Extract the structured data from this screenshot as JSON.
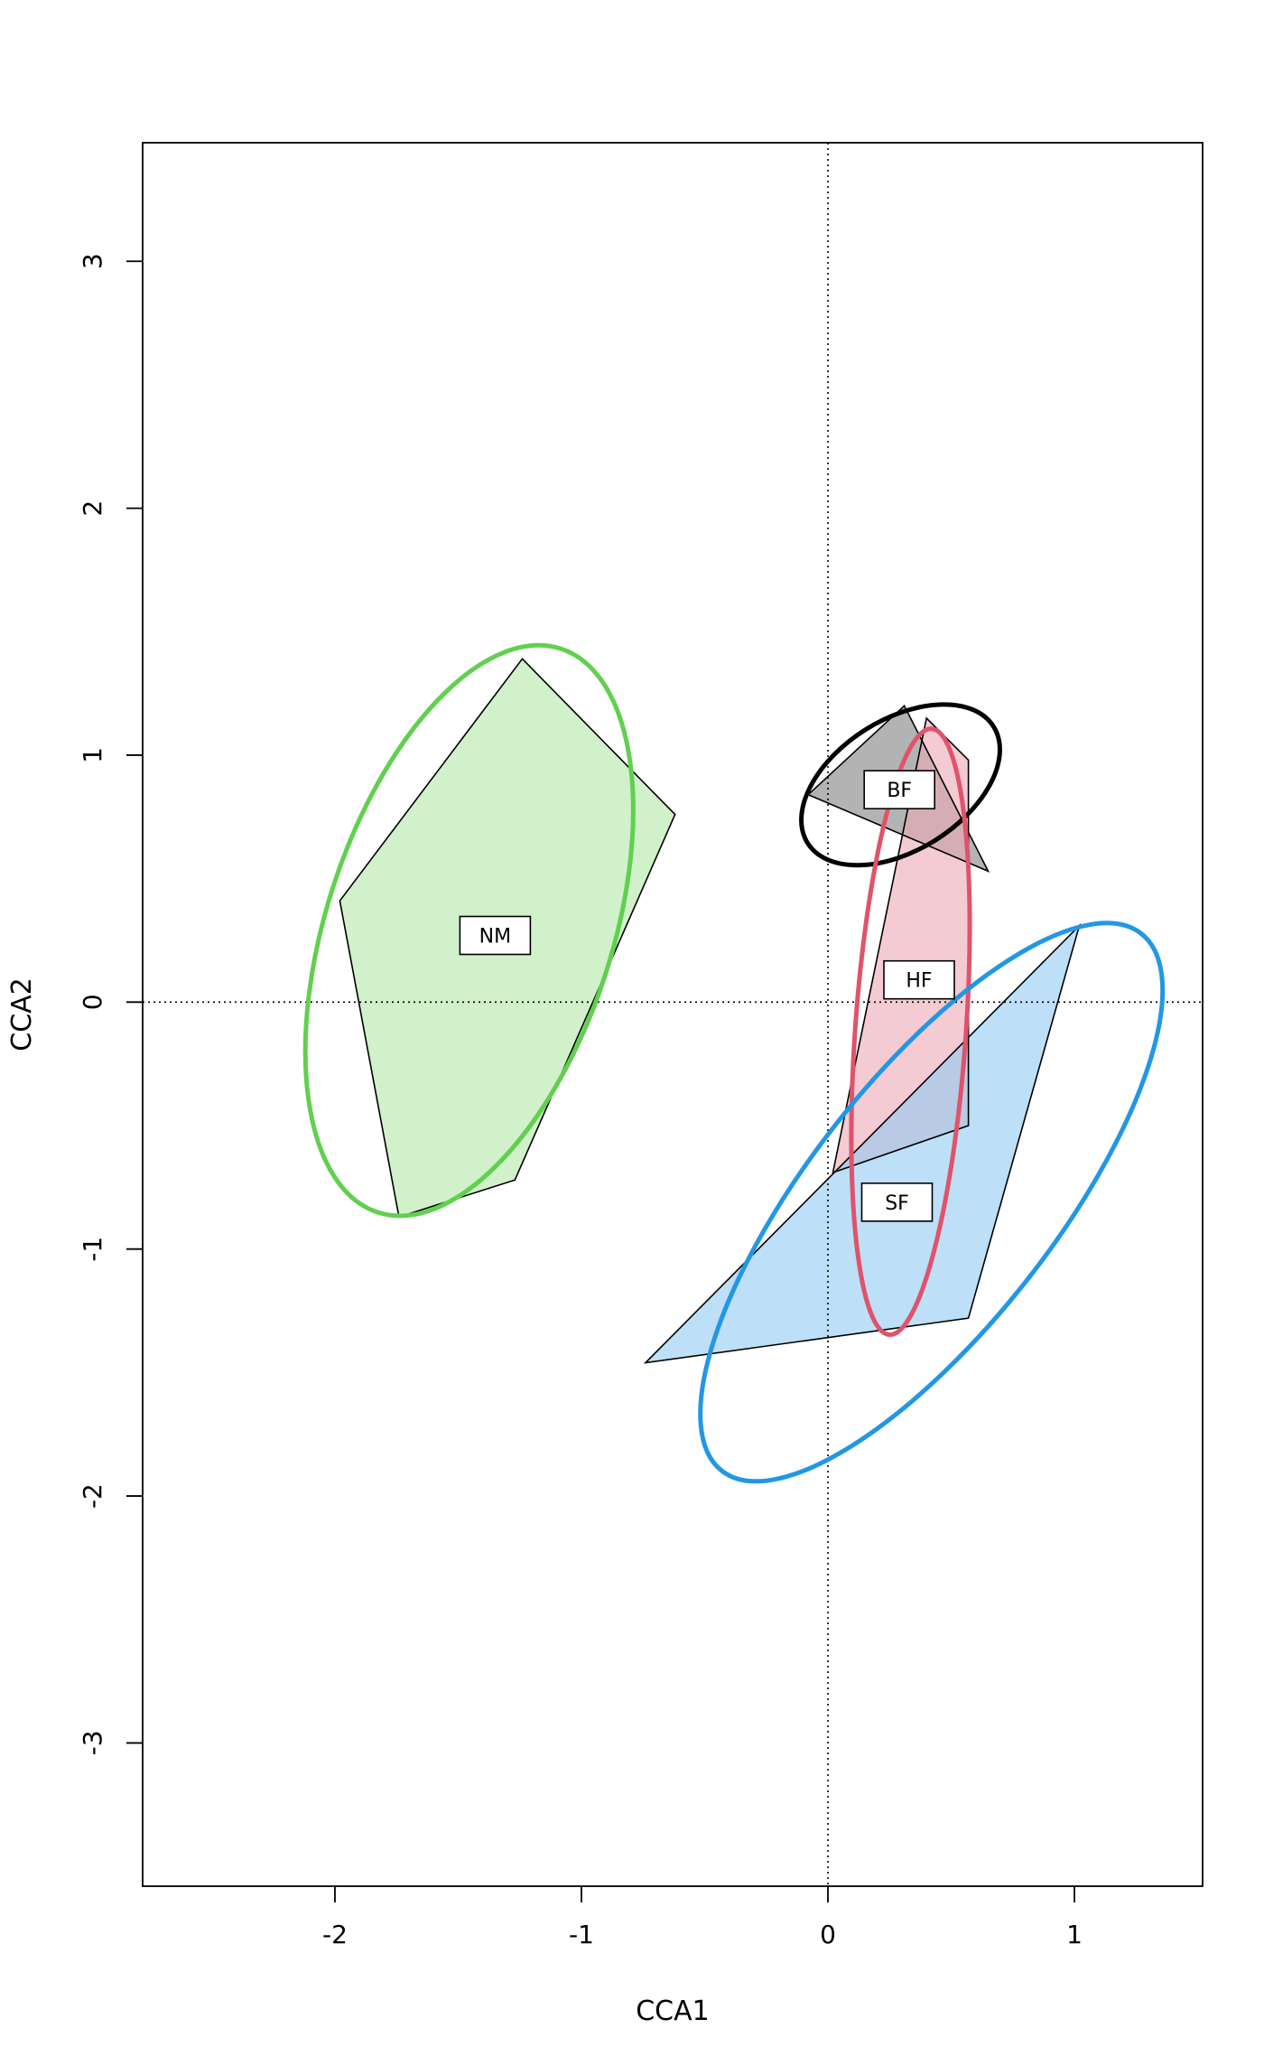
{
  "chart_data": {
    "type": "scatter",
    "title": "",
    "xlabel": "CCA1",
    "ylabel": "CCA2",
    "xlim": [
      -2.78,
      1.52
    ],
    "ylim": [
      -3.58,
      3.48
    ],
    "xticks": [
      -2,
      -1,
      0,
      1
    ],
    "yticks": [
      -3,
      -2,
      -1,
      0,
      1,
      2,
      3
    ],
    "reference_lines": {
      "x": 0,
      "y": 0,
      "style": "dotted"
    },
    "groups": [
      {
        "name": "NM",
        "color": "#61D04F",
        "fill": "#B0E8A6",
        "label_pos": [
          -1.35,
          0.27
        ],
        "hull": [
          [
            -1.98,
            0.41
          ],
          [
            -1.24,
            1.39
          ],
          [
            -0.62,
            0.76
          ],
          [
            -1.27,
            -0.72
          ],
          [
            -1.74,
            -0.87
          ]
        ],
        "ellipse": {
          "cx": -1.455,
          "cy": 0.29,
          "rx": 0.58,
          "ry": 1.2,
          "angle_deg": 18
        }
      },
      {
        "name": "BF",
        "color": "#000000",
        "fill": "#808080",
        "label_pos": [
          0.29,
          0.86
        ],
        "hull": [
          [
            -0.08,
            0.84
          ],
          [
            0.31,
            1.2
          ],
          [
            0.65,
            0.53
          ]
        ],
        "ellipse": {
          "cx": 0.295,
          "cy": 0.88,
          "rx": 0.445,
          "ry": 0.265,
          "angle_deg": -32
        }
      },
      {
        "name": "HF",
        "color": "#DF536B",
        "fill": "#EFA9B5",
        "label_pos": [
          0.37,
          0.09
        ],
        "hull": [
          [
            0.02,
            -0.69
          ],
          [
            0.4,
            1.15
          ],
          [
            0.57,
            0.98
          ],
          [
            0.57,
            -0.5
          ]
        ],
        "ellipse": {
          "cx": 0.335,
          "cy": -0.12,
          "rx": 0.225,
          "ry": 1.23,
          "angle_deg": 4
        }
      },
      {
        "name": "SF",
        "color": "#2297E6",
        "fill": "#91C9F2",
        "label_pos": [
          0.28,
          -0.81
        ],
        "hull": [
          [
            -0.74,
            -1.46
          ],
          [
            1.02,
            0.31
          ],
          [
            0.57,
            -1.28
          ]
        ],
        "ellipse": {
          "cx": 0.42,
          "cy": -0.81,
          "rx": 0.5,
          "ry": 1.38,
          "angle_deg": 38
        }
      }
    ]
  }
}
